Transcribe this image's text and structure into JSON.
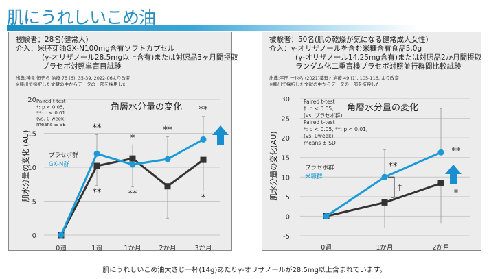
{
  "header": {
    "title": "肌にうれしいこめ油"
  },
  "footer": {
    "note": "肌にうれしいこめ油大さじ一杯(14g)あたりγ-オリザノールが28.5mg以上含まれています。"
  },
  "colors": {
    "brand": "#2a8fbf",
    "treatment": "#1a9ad6",
    "placebo": "#333333",
    "arrow": "#1a8fd0"
  },
  "left_panel": {
    "subjects": "被験者：28名(健常人)",
    "intervention": "介入：米胚芽油GX-N100mg含有ソフトカプセル",
    "intervention2": "(γ-オリザノール28.5mg以上含有)または対照品3ヶ月間摂取",
    "design": "プラセボ対照単盲目試験",
    "source": "出典:神見 恒史ら 治療 75 (6), 35-39, 2022-06より改変",
    "source_note": "※腫出で採択した文献の中からデータの一部を採用した"
  },
  "right_panel": {
    "subjects": "被験者：50名(肌の乾燥が気になる健常成人女性)",
    "intervention": "介入：γ-オリザノールを含む米糠含有食品5.0g",
    "intervention2": "(γ-オリザノール14.25mg含有)または対照品2か月間摂取",
    "design": "ランダム化二重盲検プラセボ対照並行群間比較試験",
    "source": "出典:平田 一也ら (2021)薬理と治療 49 (1), 105-116, より改変",
    "source_note": "※腫出で採択した文献の中からデータの一部を抜粋した"
  },
  "chart_data": [
    {
      "type": "line",
      "title": "角層水分量の変化",
      "ylabel": "肌水分量の変化 (AU)",
      "categories": [
        "0週",
        "1週",
        "1か月",
        "2か月",
        "3か月"
      ],
      "ylim": [
        0,
        20
      ],
      "yticks": [
        0,
        5,
        10,
        15,
        20
      ],
      "grid": true,
      "legend_position": "left",
      "stats_note": [
        "Paired t-test",
        "*: p < 0.05,",
        "**: p < 0.01",
        "(vs. 0 week)",
        "means ± SE"
      ],
      "series": [
        {
          "name": "プラセボ群",
          "color": "#333333",
          "marker": "square",
          "values": [
            0,
            10.2,
            11.3,
            7.2,
            11.1
          ],
          "error_low": [
            null,
            7.3,
            7.1,
            2.5,
            6.5
          ],
          "labels": [
            "",
            "**",
            "**",
            "",
            "*"
          ]
        },
        {
          "name": "GX-N群",
          "color": "#1a9ad6",
          "marker": "circle",
          "values": [
            0,
            12.0,
            10.4,
            11.2,
            14.1
          ],
          "error_high": [
            null,
            14.8,
            13.3,
            14.5,
            17.5
          ],
          "labels": [
            "",
            "**",
            "*",
            "**",
            "**"
          ]
        }
      ]
    },
    {
      "type": "line",
      "title": "角層水分量の変化",
      "ylabel": "肌水分量の変化(AU)",
      "categories": [
        "0週",
        "1か月",
        "2か月"
      ],
      "ylim": [
        -5,
        30
      ],
      "yticks": [
        -5,
        0,
        5,
        10,
        15,
        20,
        25,
        30
      ],
      "grid": true,
      "legend_position": "left",
      "stats_note": [
        "Paired t-test",
        "†: p < 0.05,",
        "(vs. プラセボ群)",
        "Paired t-test",
        "*: p < 0.05, **: p < 0.01,",
        "(vs. 0week)",
        "means ± SD"
      ],
      "between_group_mark": "†",
      "series": [
        {
          "name": "プラセボ群",
          "color": "#333333",
          "marker": "square",
          "values": [
            0,
            3.5,
            8.4
          ],
          "error_low": [
            null,
            -3,
            -1.8
          ],
          "labels": [
            "",
            "",
            "*"
          ]
        },
        {
          "name": "米糠群",
          "color": "#1a9ad6",
          "marker": "circle",
          "values": [
            0,
            10,
            16.3
          ],
          "error_high": [
            null,
            17,
            27.5
          ],
          "labels": [
            "",
            "**",
            "**"
          ]
        }
      ]
    }
  ]
}
